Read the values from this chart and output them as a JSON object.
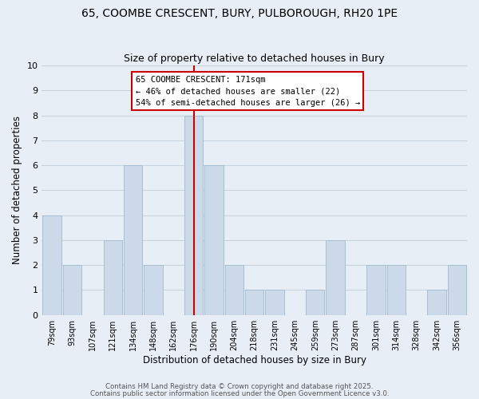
{
  "title": "65, COOMBE CRESCENT, BURY, PULBOROUGH, RH20 1PE",
  "subtitle": "Size of property relative to detached houses in Bury",
  "xlabel": "Distribution of detached houses by size in Bury",
  "ylabel": "Number of detached properties",
  "bar_color": "#ccd9e8",
  "bar_edge_color": "#a8bfd4",
  "background_color": "#e8eef6",
  "grid_color": "#c8d4e0",
  "bins": [
    "79sqm",
    "93sqm",
    "107sqm",
    "121sqm",
    "134sqm",
    "148sqm",
    "162sqm",
    "176sqm",
    "190sqm",
    "204sqm",
    "218sqm",
    "231sqm",
    "245sqm",
    "259sqm",
    "273sqm",
    "287sqm",
    "301sqm",
    "314sqm",
    "328sqm",
    "342sqm",
    "356sqm"
  ],
  "counts": [
    4,
    2,
    0,
    3,
    6,
    2,
    0,
    8,
    6,
    2,
    1,
    1,
    0,
    1,
    3,
    0,
    2,
    2,
    0,
    1,
    2
  ],
  "ylim": [
    0,
    10
  ],
  "yticks": [
    0,
    1,
    2,
    3,
    4,
    5,
    6,
    7,
    8,
    9,
    10
  ],
  "property_line_bin_index": 7,
  "property_line_color": "#cc0000",
  "annotation_title": "65 COOMBE CRESCENT: 171sqm",
  "annotation_line1": "← 46% of detached houses are smaller (22)",
  "annotation_line2": "54% of semi-detached houses are larger (26) →",
  "annotation_box_color": "#ffffff",
  "annotation_box_edge": "#cc0000",
  "footnote1": "Contains HM Land Registry data © Crown copyright and database right 2025.",
  "footnote2": "Contains public sector information licensed under the Open Government Licence v3.0."
}
